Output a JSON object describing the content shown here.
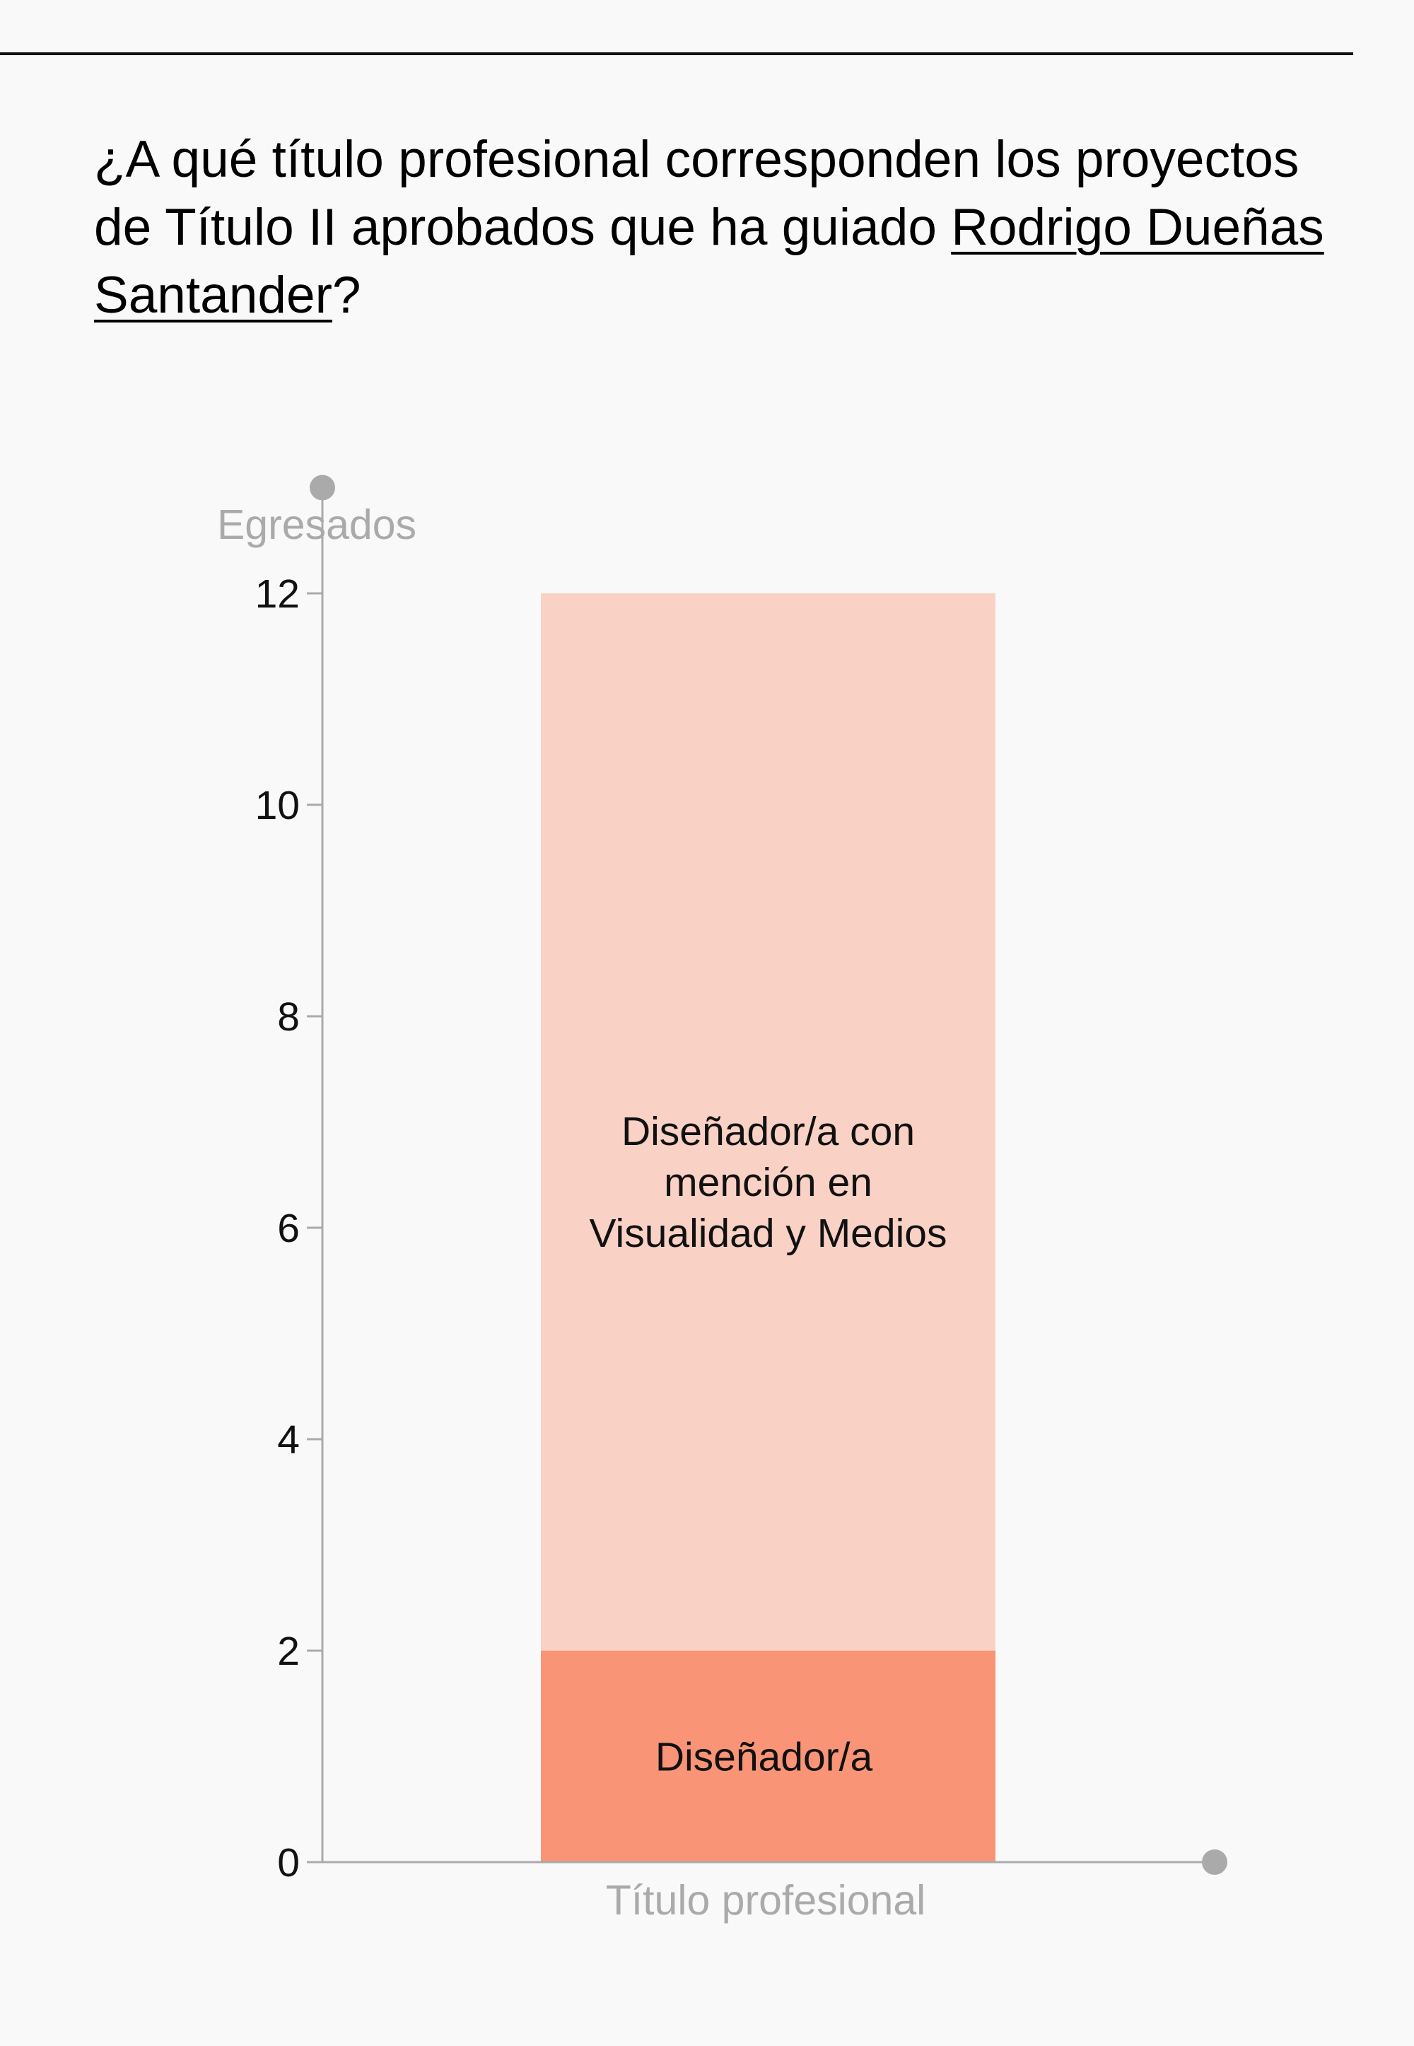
{
  "question": {
    "prefix": "¿A qué título profesional corresponden los proyectos de Título II aprobados que ha guiado ",
    "person": "Rodrigo Dueñas Santander",
    "suffix": "?"
  },
  "chart_data": {
    "type": "bar",
    "stacked": true,
    "xlabel": "Título profesional",
    "ylabel": "Egresados",
    "ylim": [
      0,
      13
    ],
    "yticks": [
      0,
      2,
      4,
      6,
      8,
      10,
      12
    ],
    "segments": [
      {
        "name": "Diseñador/a",
        "value": 2,
        "color": "#fa9476"
      },
      {
        "name": "Diseñador/a con mención en Visualidad y Medios",
        "value": 10,
        "color": "#fad1c5"
      }
    ],
    "grid": false,
    "colors": {
      "axis": "#aaaaaa",
      "axis_label": "#aaaaaa",
      "tick_label": "#111111"
    }
  }
}
